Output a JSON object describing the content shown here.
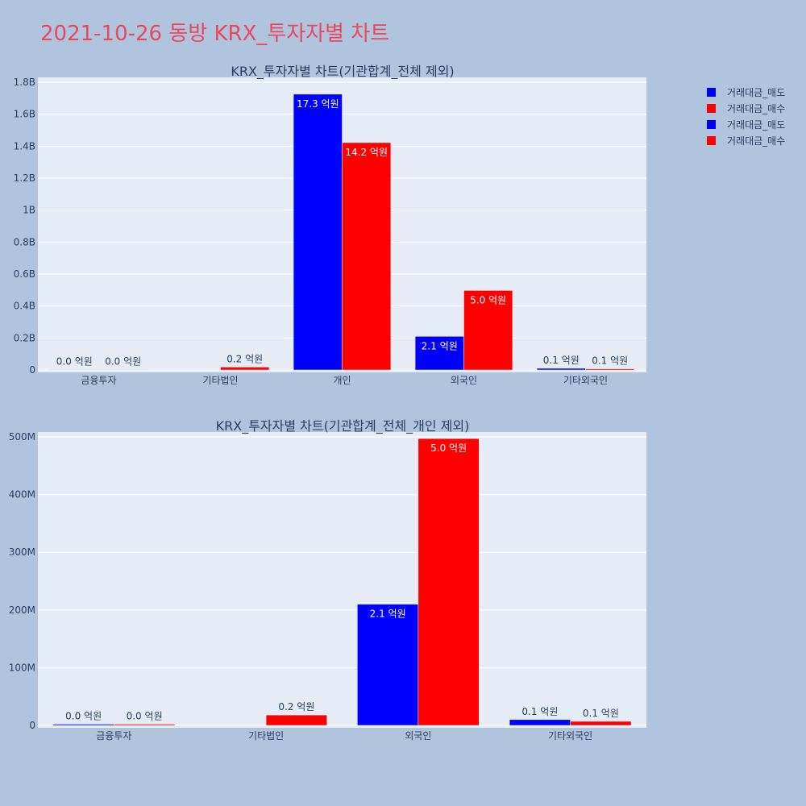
{
  "page_title": "2021-10-26 동방 KRX_투자자별 차트",
  "colors": {
    "page_bg": "#b0c4de",
    "plot_bg": "#e5ecf6",
    "title_color": "#e8495f",
    "text_color": "#2a3f5f",
    "sell_color": "#0000ff",
    "buy_color": "#ff0000"
  },
  "legend": {
    "items": [
      {
        "label": "거래대금_매도",
        "color": "#0000ff"
      },
      {
        "label": "거래대금_매수",
        "color": "#ff0000"
      },
      {
        "label": "거래대금_매도",
        "color": "#0000ff"
      },
      {
        "label": "거래대금_매수",
        "color": "#ff0000"
      }
    ]
  },
  "chart_data": [
    {
      "type": "bar",
      "title": "KRX_투자자별 차트(기관합계_전체 제외)",
      "categories": [
        "금융투자",
        "기타법인",
        "개인",
        "외국인",
        "기타외국인"
      ],
      "series": [
        {
          "name": "거래대금_매도",
          "values": [
            2000000,
            0,
            1725000000,
            210000000,
            10000000
          ],
          "labels": [
            "0.0 억원",
            "",
            "17.3 억원",
            "2.1 억원",
            "0.1 억원"
          ]
        },
        {
          "name": "거래대금_매수",
          "values": [
            2000000,
            18000000,
            1422000000,
            497000000,
            7000000
          ],
          "labels": [
            "0.0 억원",
            "0.2 억원",
            "14.2 억원",
            "5.0 억원",
            "0.1 억원"
          ]
        }
      ],
      "ylim": [
        0,
        1800000000
      ],
      "yticks": [
        0,
        200000000,
        400000000,
        600000000,
        800000000,
        1000000000,
        1200000000,
        1400000000,
        1600000000,
        1800000000
      ],
      "ytick_labels": [
        "0",
        "0.2B",
        "0.4B",
        "0.6B",
        "0.8B",
        "1B",
        "1.2B",
        "1.4B",
        "1.6B",
        "1.8B"
      ],
      "grid": true
    },
    {
      "type": "bar",
      "title": "KRX_투자자별 차트(기관합계_전체_개인 제외)",
      "categories": [
        "금융투자",
        "기타법인",
        "외국인",
        "기타외국인"
      ],
      "series": [
        {
          "name": "거래대금_매도",
          "values": [
            2000000,
            0,
            210000000,
            10000000
          ],
          "labels": [
            "0.0 억원",
            "",
            "2.1 억원",
            "0.1 억원"
          ]
        },
        {
          "name": "거래대금_매수",
          "values": [
            2000000,
            18000000,
            497000000,
            7000000
          ],
          "labels": [
            "0.0 억원",
            "0.2 억원",
            "5.0 억원",
            "0.1 억원"
          ]
        }
      ],
      "ylim": [
        0,
        500000000
      ],
      "yticks": [
        0,
        100000000,
        200000000,
        300000000,
        400000000,
        500000000
      ],
      "ytick_labels": [
        "0",
        "100M",
        "200M",
        "300M",
        "400M",
        "500M"
      ],
      "grid": true
    }
  ]
}
